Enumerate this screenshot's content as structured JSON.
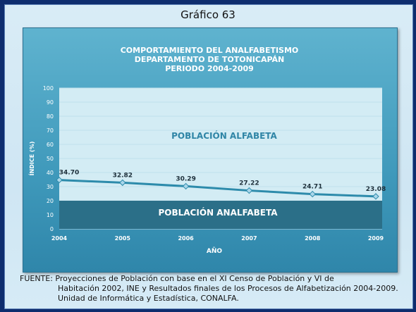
{
  "page_title": "Gráfico 63",
  "source": {
    "line1": "FUENTE: Proyecciones de Población con base en el XI Censo de Población y VI de",
    "line2": "Habitación 2002, INE y Resultados finales de los Procesos de Alfabetización 2004-2009.",
    "line3": "Unidad de Informática y Estadística, CONALFA."
  },
  "chart_data": {
    "type": "area",
    "title_lines": [
      "COMPORTAMIENTO DEL ANALFABETISMO",
      "DEPARTAMENTO DE TOTONICAPÁN",
      "PERIODO 2004-2009"
    ],
    "xlabel": "AÑO",
    "ylabel": "ÍNDICE (%)",
    "ylim": [
      0,
      100
    ],
    "yticks": [
      0,
      10,
      20,
      30,
      40,
      50,
      60,
      70,
      80,
      90,
      100
    ],
    "x": [
      "2004",
      "2005",
      "2006",
      "2007",
      "2008",
      "2009"
    ],
    "series": [
      {
        "values": [
          34.7,
          32.82,
          30.29,
          27.22,
          24.71,
          23.08
        ]
      }
    ],
    "data_labels": [
      "34.70",
      "32.82",
      "30.29",
      "27.22",
      "24.71",
      "23.08"
    ],
    "annotations": {
      "upper": "POBLACIÓN ALFABETA",
      "lower": "POBLACIÓN ANALFABETA"
    },
    "grid": true,
    "colors": {
      "panel": "#4aa3c6",
      "upper_fill": "#d3ecf4",
      "lower_fill": "#2b6f88",
      "line": "#2d8bab",
      "marker": "#a9d6ea"
    }
  }
}
